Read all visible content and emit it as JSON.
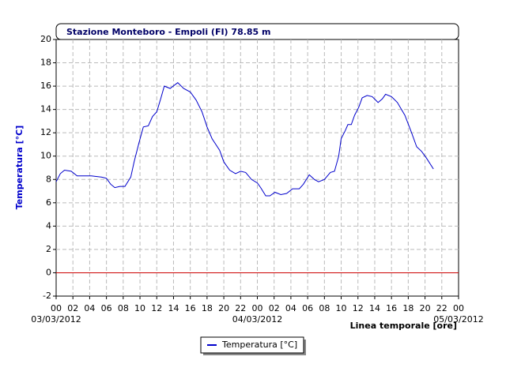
{
  "chart_data": {
    "type": "line",
    "title": "Stazione Monteboro - Empoli (FI) 78.85 m",
    "y_label": "Temperatura [°C]",
    "x_label": "Linea temporale [ore]",
    "x": [
      0,
      0.5,
      1,
      1.8,
      2.5,
      4.2,
      5.4,
      6,
      6.5,
      7,
      7.6,
      8.2,
      8.9,
      9.3,
      9.9,
      10.4,
      11,
      11.5,
      12,
      12.5,
      12.9,
      13.6,
      14.5,
      15.2,
      16,
      16.7,
      17.4,
      18,
      18.6,
      19.5,
      20,
      20.7,
      21.4,
      22,
      22.6,
      23.3,
      24,
      24.4,
      25,
      25.5,
      26.1,
      26.8,
      27.5,
      28.2,
      29,
      29.5,
      30.2,
      30.8,
      31.3,
      32,
      32.7,
      33.2,
      33.7,
      34,
      34.5,
      34.8,
      35.2,
      35.6,
      36.1,
      36.5,
      37.1,
      37.7,
      38.4,
      38.9,
      39.3,
      40,
      40.7,
      41.6,
      42.4,
      43,
      43.6,
      44.2,
      45
    ],
    "series": [
      {
        "name": "Temperatura [°C]",
        "color": "#0000cc",
        "values": [
          7.8,
          8.5,
          8.8,
          8.7,
          8.3,
          8.3,
          8.2,
          8.1,
          7.6,
          7.3,
          7.4,
          7.4,
          8.2,
          9.5,
          11.2,
          12.5,
          12.6,
          13.4,
          13.8,
          15,
          16,
          15.8,
          16.3,
          15.8,
          15.5,
          14.8,
          13.8,
          12.5,
          11.5,
          10.5,
          9.5,
          8.8,
          8.5,
          8.7,
          8.6,
          8,
          7.7,
          7.3,
          6.6,
          6.6,
          6.9,
          6.7,
          6.8,
          7.2,
          7.2,
          7.6,
          8.4,
          8,
          7.8,
          8,
          8.6,
          8.7,
          10,
          11.5,
          12.2,
          12.7,
          12.7,
          13.5,
          14.2,
          15,
          15.2,
          15.1,
          14.6,
          14.9,
          15.3,
          15.1,
          14.6,
          13.5,
          12,
          10.8,
          10.4,
          9.8,
          8.9
        ]
      }
    ],
    "xlim": [
      0,
      48
    ],
    "xticks": [
      {
        "value": 0,
        "label": "00"
      },
      {
        "value": 2,
        "label": "02"
      },
      {
        "value": 4,
        "label": "04"
      },
      {
        "value": 6,
        "label": "06"
      },
      {
        "value": 8,
        "label": "08"
      },
      {
        "value": 10,
        "label": "10"
      },
      {
        "value": 12,
        "label": "12"
      },
      {
        "value": 14,
        "label": "14"
      },
      {
        "value": 16,
        "label": "16"
      },
      {
        "value": 18,
        "label": "18"
      },
      {
        "value": 20,
        "label": "20"
      },
      {
        "value": 22,
        "label": "22"
      },
      {
        "value": 24,
        "label": "00"
      },
      {
        "value": 26,
        "label": "02"
      },
      {
        "value": 28,
        "label": "04"
      },
      {
        "value": 30,
        "label": "06"
      },
      {
        "value": 32,
        "label": "08"
      },
      {
        "value": 34,
        "label": "10"
      },
      {
        "value": 36,
        "label": "12"
      },
      {
        "value": 38,
        "label": "14"
      },
      {
        "value": 40,
        "label": "16"
      },
      {
        "value": 42,
        "label": "18"
      },
      {
        "value": 44,
        "label": "20"
      },
      {
        "value": 46,
        "label": "22"
      },
      {
        "value": 48,
        "label": "00"
      }
    ],
    "date_labels": [
      {
        "value": 0,
        "label": "03/03/2012"
      },
      {
        "value": 24,
        "label": "04/03/2012"
      },
      {
        "value": 48,
        "label": "05/03/2012"
      }
    ],
    "ylim": [
      -2,
      20
    ],
    "yticks": [
      -2,
      0,
      2,
      4,
      6,
      8,
      10,
      12,
      14,
      16,
      18,
      20
    ],
    "reference_line": {
      "value": 0,
      "color": "#cc0000"
    },
    "grid": true
  }
}
